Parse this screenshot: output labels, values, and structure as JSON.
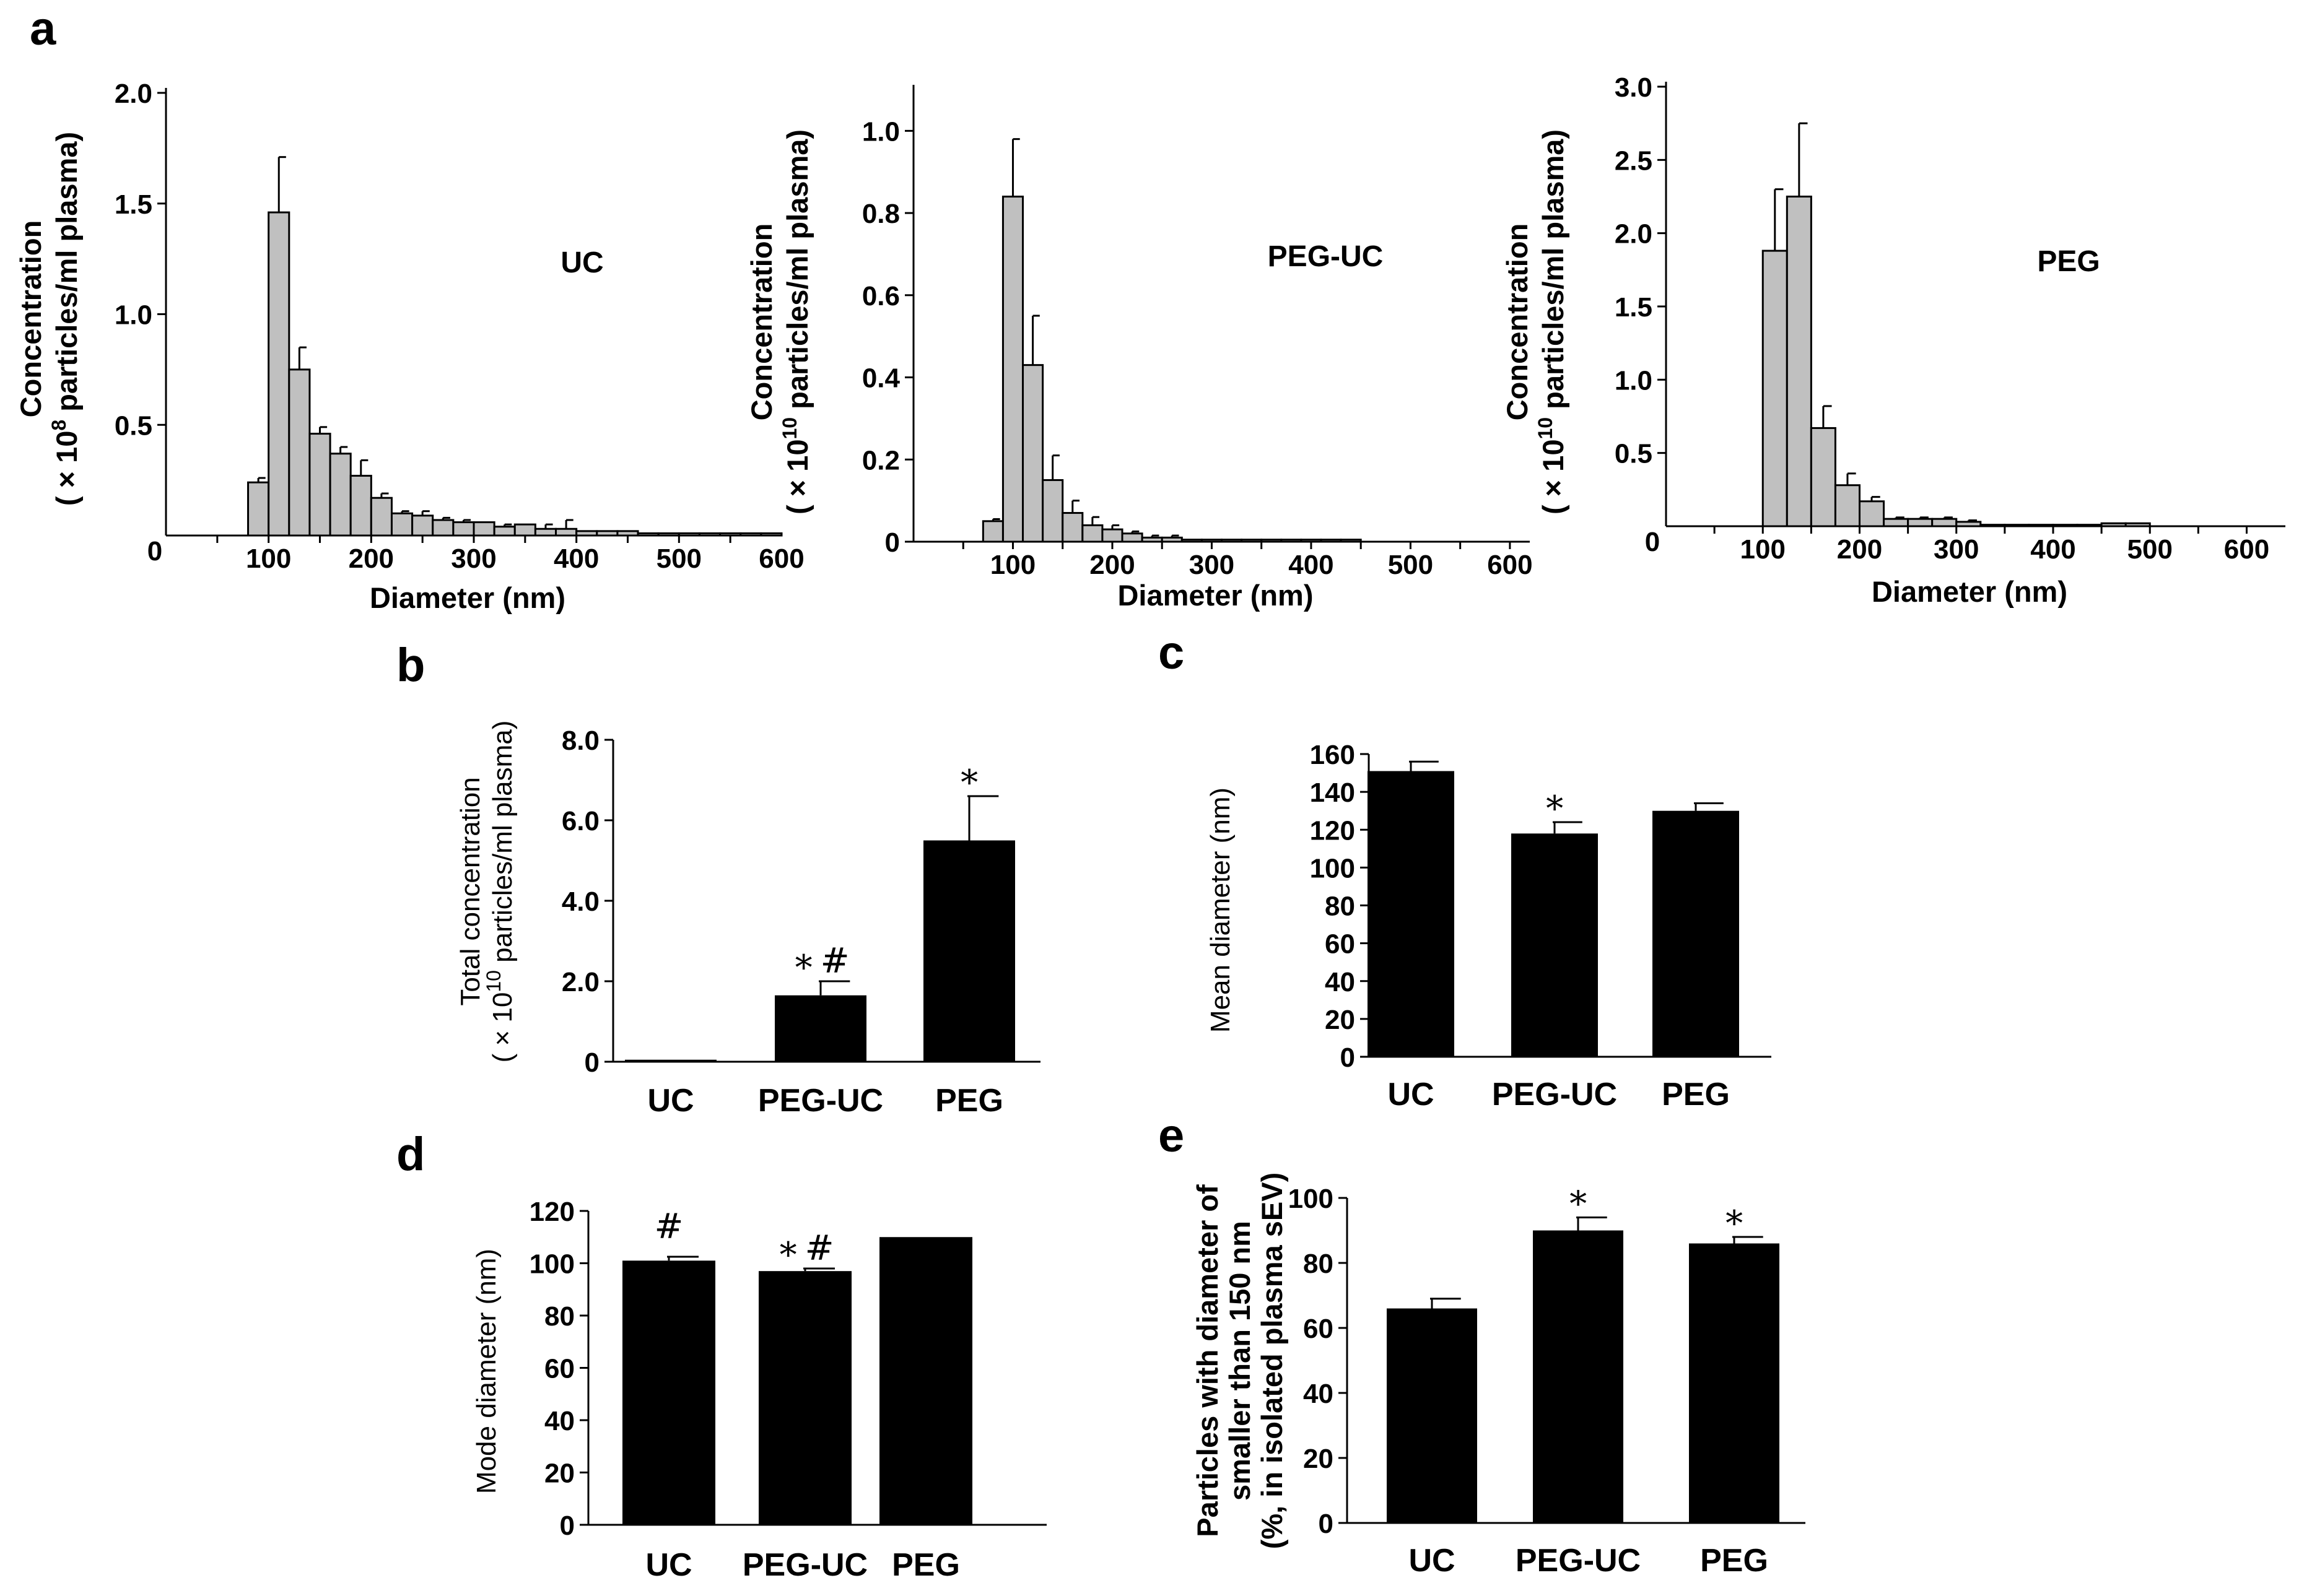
{
  "panel_labels": [
    "a",
    "b",
    "c",
    "d",
    "e"
  ],
  "chart_data": [
    {
      "id": "a1",
      "panel": "a",
      "type": "bar",
      "title": "UC",
      "xlabel": "Diameter (nm)",
      "ylabel": [
        "Concentration",
        "( × 10",
        "8",
        " particles/ml plasma)"
      ],
      "xlim": [
        0,
        600
      ],
      "ylim": [
        0,
        2.0
      ],
      "yticks": [
        "0.5",
        "1.0",
        "1.5",
        "2.0"
      ],
      "ytick_values": [
        0.5,
        1.0,
        1.5,
        2.0
      ],
      "xticks": [
        "100",
        "200",
        "300",
        "400",
        "500",
        "600"
      ],
      "xtick_values": [
        100,
        200,
        300,
        400,
        500,
        600
      ],
      "origin_label": "0",
      "bin_width": 20,
      "bins": [
        80,
        100,
        120,
        140,
        160,
        180,
        200,
        220,
        240,
        260,
        280,
        300,
        320,
        340,
        360,
        380,
        400,
        420,
        440,
        460,
        480,
        500,
        520,
        540,
        560,
        580
      ],
      "values": [
        0.24,
        1.46,
        0.75,
        0.46,
        0.37,
        0.27,
        0.17,
        0.1,
        0.09,
        0.07,
        0.06,
        0.06,
        0.04,
        0.05,
        0.03,
        0.03,
        0.02,
        0.02,
        0.02,
        0.01,
        0.01,
        0.01,
        0.01,
        0.01,
        0.01,
        0.01
      ],
      "errors": [
        0.02,
        0.25,
        0.1,
        0.03,
        0.03,
        0.07,
        0.02,
        0.01,
        0.02,
        0.01,
        0.01,
        0.0,
        0.01,
        0.0,
        0.02,
        0.04,
        0.0,
        0.0,
        0.0,
        0.0,
        0.0,
        0.0,
        0.0,
        0.0,
        0.0,
        0.0
      ]
    },
    {
      "id": "a2",
      "panel": "a",
      "type": "bar",
      "title": "PEG-UC",
      "xlabel": "Diameter (nm)",
      "ylabel": [
        "Concentration",
        "( × 10",
        "10",
        " particles/ml plasma)"
      ],
      "xlim": [
        0,
        620
      ],
      "ylim": [
        0,
        1.1
      ],
      "yticks": [
        "0",
        "0.2",
        "0.4",
        "0.6",
        "0.8",
        "1.0"
      ],
      "ytick_values": [
        0,
        0.2,
        0.4,
        0.6,
        0.8,
        1.0
      ],
      "xticks": [
        "100",
        "200",
        "300",
        "400",
        "500",
        "600"
      ],
      "xtick_values": [
        100,
        200,
        300,
        400,
        500,
        600
      ],
      "origin_label": "",
      "bin_width": 20,
      "bins": [
        70,
        90,
        110,
        130,
        150,
        170,
        190,
        210,
        230,
        250,
        270,
        290,
        310,
        330,
        350,
        370,
        390,
        410,
        430
      ],
      "values": [
        0.05,
        0.84,
        0.43,
        0.15,
        0.07,
        0.04,
        0.03,
        0.02,
        0.01,
        0.01,
        0.005,
        0.005,
        0.005,
        0.005,
        0.005,
        0.005,
        0.005,
        0.005,
        0.005
      ],
      "errors": [
        0.005,
        0.14,
        0.12,
        0.06,
        0.03,
        0.02,
        0.01,
        0.005,
        0.005,
        0.005,
        0.0,
        0.0,
        0.0,
        0.0,
        0.0,
        0.0,
        0.0,
        0.0,
        0.0
      ]
    },
    {
      "id": "a3",
      "panel": "a",
      "type": "bar",
      "title": "PEG",
      "xlabel": "Diameter (nm)",
      "ylabel": [
        "Concentration",
        "( × 10",
        "10",
        " particles/ml plasma)"
      ],
      "xlim": [
        0,
        640
      ],
      "ylim": [
        0,
        3.0
      ],
      "yticks": [
        "0.5",
        "1.0",
        "1.5",
        "2.0",
        "2.5",
        "3.0"
      ],
      "ytick_values": [
        0.5,
        1.0,
        1.5,
        2.0,
        2.5,
        3.0
      ],
      "xticks": [
        "100",
        "200",
        "300",
        "400",
        "500",
        "600"
      ],
      "xtick_values": [
        100,
        200,
        300,
        400,
        500,
        600
      ],
      "origin_label": "0",
      "bin_width": 25,
      "bins": [
        100,
        125,
        150,
        175,
        200,
        225,
        250,
        275,
        300,
        325,
        350,
        375,
        400,
        425,
        450,
        475
      ],
      "values": [
        1.88,
        2.25,
        0.67,
        0.28,
        0.17,
        0.05,
        0.05,
        0.05,
        0.03,
        0.01,
        0.01,
        0.01,
        0.01,
        0.01,
        0.02,
        0.02
      ],
      "errors": [
        0.42,
        0.5,
        0.15,
        0.08,
        0.03,
        0.01,
        0.01,
        0.01,
        0.01,
        0.0,
        0.0,
        0.0,
        0.0,
        0.0,
        0.0,
        0.0
      ]
    },
    {
      "id": "b",
      "panel": "b",
      "type": "bar",
      "categories": [
        "UC",
        "PEG-UC",
        "PEG"
      ],
      "values": [
        0.05,
        1.65,
        5.5
      ],
      "errors": [
        0.0,
        0.35,
        1.1
      ],
      "annotations": [
        "",
        "*#",
        "*"
      ],
      "ylabel": [
        "Total concentration",
        "( × 10",
        "10",
        " particles/ml plasma)"
      ],
      "ylim": [
        0,
        8.0
      ],
      "yticks": [
        "0",
        "2.0",
        "4.0",
        "6.0",
        "8.0"
      ],
      "ytick_values": [
        0,
        2,
        4,
        6,
        8
      ]
    },
    {
      "id": "c",
      "panel": "c",
      "type": "bar",
      "categories": [
        "UC",
        "PEG-UC",
        "PEG"
      ],
      "values": [
        151,
        118,
        130
      ],
      "errors": [
        5,
        6,
        4
      ],
      "annotations": [
        "",
        "*",
        ""
      ],
      "ylabel": [
        "Mean diameter (nm)"
      ],
      "ylim": [
        0,
        160
      ],
      "yticks": [
        "0",
        "20",
        "40",
        "60",
        "80",
        "100",
        "120",
        "140",
        "160"
      ],
      "ytick_values": [
        0,
        20,
        40,
        60,
        80,
        100,
        120,
        140,
        160
      ]
    },
    {
      "id": "d",
      "panel": "d",
      "type": "bar",
      "categories": [
        "UC",
        "PEG-UC",
        "PEG"
      ],
      "values": [
        101,
        97,
        110
      ],
      "errors": [
        1.5,
        1.0,
        0.0
      ],
      "annotations": [
        "#",
        "*#",
        ""
      ],
      "ylabel": [
        "Mode diameter (nm)"
      ],
      "ylim": [
        0,
        120
      ],
      "yticks": [
        "0",
        "20",
        "40",
        "60",
        "80",
        "100",
        "120"
      ],
      "ytick_values": [
        0,
        20,
        40,
        60,
        80,
        100,
        120
      ]
    },
    {
      "id": "e",
      "panel": "e",
      "type": "bar",
      "categories": [
        "UC",
        "PEG-UC",
        "PEG"
      ],
      "values": [
        66,
        90,
        86
      ],
      "errors": [
        3,
        4,
        2
      ],
      "annotations": [
        "",
        "*",
        "*"
      ],
      "ylabel": [
        "Particles with diameter of",
        "smaller than 150 nm",
        "(%, in isolated plasma sEV)"
      ],
      "ylim": [
        0,
        100
      ],
      "yticks": [
        "0",
        "20",
        "40",
        "60",
        "80",
        "100"
      ],
      "ytick_values": [
        0,
        20,
        40,
        60,
        80,
        100
      ]
    }
  ]
}
